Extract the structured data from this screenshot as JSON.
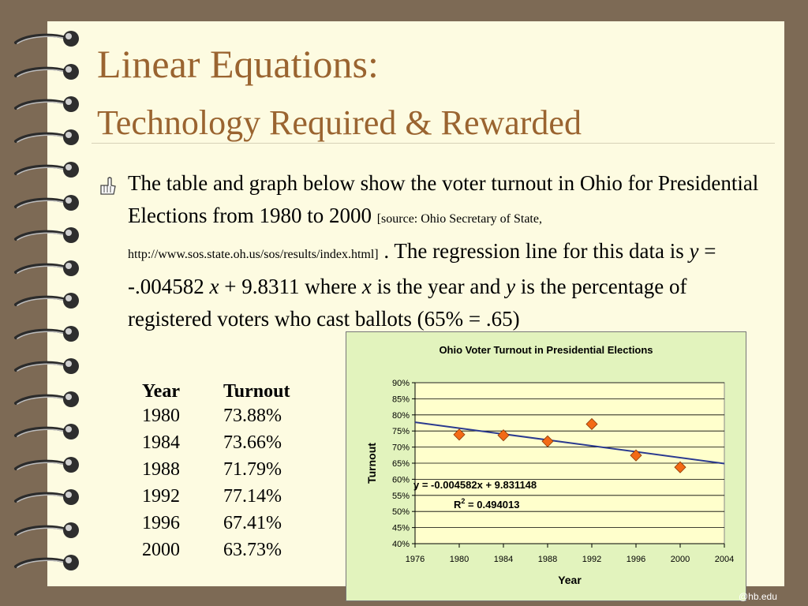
{
  "slide": {
    "title_line1": "Linear Equations:",
    "title_line2": "Technology Required & Rewarded",
    "paragraph": {
      "p1": "The table and graph below show the voter turnout in Ohio for Presidential Elections from 1980 to 2000 ",
      "source1": "[source: Ohio Secretary of State, ",
      "source_url": "http://www.sos.state.oh.us/sos/results/index.html]",
      "p2": " .  The regression line for this data is ",
      "y1": "y",
      "p3": " = -.004582 ",
      "x1": "x",
      "p4": " + 9.8311  where ",
      "x2": "x",
      "p5": " is the year and ",
      "y2": "y",
      "p6": " is the percentage of registered voters who cast ballots (65% = .65)"
    },
    "footer": "@hb.edu"
  },
  "table": {
    "headers": [
      "Year",
      "Turnout"
    ],
    "rows": [
      [
        "1980",
        "73.88%"
      ],
      [
        "1984",
        "73.66%"
      ],
      [
        "1988",
        "71.79%"
      ],
      [
        "1992",
        "77.14%"
      ],
      [
        "1996",
        "67.41%"
      ],
      [
        "2000",
        "63.73%"
      ]
    ]
  },
  "chart_data": {
    "type": "scatter",
    "title": "Ohio Voter Turnout in Presidential Elections",
    "xlabel": "Year",
    "ylabel": "Turnout",
    "xlim": [
      1976,
      2004
    ],
    "ylim": [
      0.4,
      0.9
    ],
    "xticks": [
      1976,
      1980,
      1984,
      1988,
      1992,
      1996,
      2000,
      2004
    ],
    "yticks": [
      0.4,
      0.45,
      0.5,
      0.55,
      0.6,
      0.65,
      0.7,
      0.75,
      0.8,
      0.85,
      0.9
    ],
    "ytick_labels": [
      "40%",
      "45%",
      "50%",
      "55%",
      "60%",
      "65%",
      "70%",
      "75%",
      "80%",
      "85%",
      "90%"
    ],
    "grid": true,
    "x": [
      1980,
      1984,
      1988,
      1992,
      1996,
      2000
    ],
    "y": [
      0.7388,
      0.7366,
      0.7179,
      0.7714,
      0.6741,
      0.6373
    ],
    "trendline": {
      "slope": -0.004582,
      "intercept": 9.831148
    },
    "annotations": {
      "equation": "y = -0.004582x + 9.831148",
      "r2_prefix": "R",
      "r2_sup": "2",
      "r2_value": " = 0.494013"
    },
    "colors": {
      "background": "#e2f3bd",
      "plot_area": "#ffffcc",
      "trendline": "#2b3a8f",
      "marker": "#f36a15",
      "grid": "#000000"
    }
  }
}
